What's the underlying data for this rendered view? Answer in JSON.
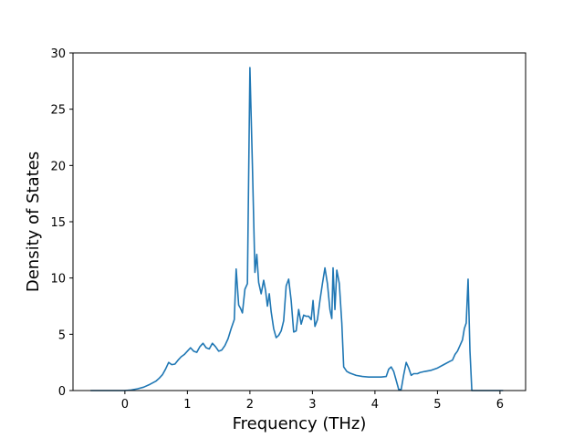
{
  "chart_data": {
    "type": "line",
    "title": "",
    "xlabel": "Frequency (THz)",
    "ylabel": "Density of States",
    "xlim": [
      -0.83,
      6.41
    ],
    "ylim": [
      0,
      30
    ],
    "xticks": [
      0,
      1,
      2,
      3,
      4,
      5,
      6
    ],
    "yticks": [
      0,
      5,
      10,
      15,
      20,
      25,
      30
    ],
    "grid": false,
    "line_color": "#1f77b4",
    "series": [
      {
        "points": [
          [
            -0.55,
            0.0
          ],
          [
            0.0,
            0.0
          ],
          [
            0.1,
            0.05
          ],
          [
            0.2,
            0.15
          ],
          [
            0.3,
            0.3
          ],
          [
            0.4,
            0.55
          ],
          [
            0.5,
            0.85
          ],
          [
            0.55,
            1.1
          ],
          [
            0.6,
            1.4
          ],
          [
            0.65,
            1.9
          ],
          [
            0.7,
            2.5
          ],
          [
            0.75,
            2.3
          ],
          [
            0.8,
            2.35
          ],
          [
            0.85,
            2.7
          ],
          [
            0.9,
            3.0
          ],
          [
            0.95,
            3.2
          ],
          [
            1.0,
            3.5
          ],
          [
            1.05,
            3.8
          ],
          [
            1.1,
            3.5
          ],
          [
            1.15,
            3.4
          ],
          [
            1.2,
            3.9
          ],
          [
            1.25,
            4.2
          ],
          [
            1.3,
            3.8
          ],
          [
            1.35,
            3.7
          ],
          [
            1.4,
            4.2
          ],
          [
            1.45,
            3.9
          ],
          [
            1.5,
            3.5
          ],
          [
            1.55,
            3.6
          ],
          [
            1.6,
            4.0
          ],
          [
            1.65,
            4.6
          ],
          [
            1.7,
            5.5
          ],
          [
            1.75,
            6.3
          ],
          [
            1.78,
            10.8
          ],
          [
            1.82,
            7.6
          ],
          [
            1.85,
            7.3
          ],
          [
            1.88,
            6.9
          ],
          [
            1.92,
            9.0
          ],
          [
            1.96,
            9.5
          ],
          [
            2.0,
            28.7
          ],
          [
            2.04,
            20.0
          ],
          [
            2.08,
            10.5
          ],
          [
            2.11,
            12.1
          ],
          [
            2.14,
            9.6
          ],
          [
            2.18,
            8.6
          ],
          [
            2.22,
            9.8
          ],
          [
            2.25,
            8.9
          ],
          [
            2.28,
            7.5
          ],
          [
            2.31,
            8.6
          ],
          [
            2.34,
            7.0
          ],
          [
            2.38,
            5.5
          ],
          [
            2.42,
            4.7
          ],
          [
            2.46,
            4.9
          ],
          [
            2.5,
            5.3
          ],
          [
            2.54,
            6.2
          ],
          [
            2.58,
            9.3
          ],
          [
            2.62,
            9.9
          ],
          [
            2.66,
            8.0
          ],
          [
            2.7,
            5.2
          ],
          [
            2.74,
            5.3
          ],
          [
            2.78,
            7.2
          ],
          [
            2.82,
            5.9
          ],
          [
            2.86,
            6.7
          ],
          [
            2.9,
            6.6
          ],
          [
            2.94,
            6.6
          ],
          [
            2.98,
            6.3
          ],
          [
            3.01,
            8.0
          ],
          [
            3.04,
            5.7
          ],
          [
            3.08,
            6.3
          ],
          [
            3.12,
            8.0
          ],
          [
            3.16,
            9.5
          ],
          [
            3.2,
            10.9
          ],
          [
            3.24,
            9.5
          ],
          [
            3.28,
            7.2
          ],
          [
            3.31,
            6.4
          ],
          [
            3.33,
            10.9
          ],
          [
            3.36,
            7.2
          ],
          [
            3.39,
            10.7
          ],
          [
            3.43,
            9.5
          ],
          [
            3.47,
            6.0
          ],
          [
            3.5,
            2.1
          ],
          [
            3.55,
            1.7
          ],
          [
            3.6,
            1.55
          ],
          [
            3.7,
            1.35
          ],
          [
            3.8,
            1.25
          ],
          [
            3.9,
            1.2
          ],
          [
            4.0,
            1.2
          ],
          [
            4.1,
            1.2
          ],
          [
            4.18,
            1.25
          ],
          [
            4.22,
            1.9
          ],
          [
            4.26,
            2.1
          ],
          [
            4.3,
            1.7
          ],
          [
            4.34,
            0.9
          ],
          [
            4.38,
            0.1
          ],
          [
            4.42,
            0.1
          ],
          [
            4.46,
            1.4
          ],
          [
            4.5,
            2.5
          ],
          [
            4.54,
            2.0
          ],
          [
            4.58,
            1.35
          ],
          [
            4.62,
            1.5
          ],
          [
            4.68,
            1.5
          ],
          [
            4.72,
            1.6
          ],
          [
            4.8,
            1.7
          ],
          [
            4.9,
            1.8
          ],
          [
            5.0,
            2.0
          ],
          [
            5.1,
            2.3
          ],
          [
            5.2,
            2.6
          ],
          [
            5.24,
            2.7
          ],
          [
            5.28,
            3.2
          ],
          [
            5.32,
            3.5
          ],
          [
            5.36,
            4.0
          ],
          [
            5.4,
            4.5
          ],
          [
            5.43,
            5.5
          ],
          [
            5.46,
            6.0
          ],
          [
            5.49,
            9.9
          ],
          [
            5.52,
            3.5
          ],
          [
            5.55,
            0.0
          ],
          [
            6.05,
            0.0
          ]
        ]
      }
    ]
  }
}
